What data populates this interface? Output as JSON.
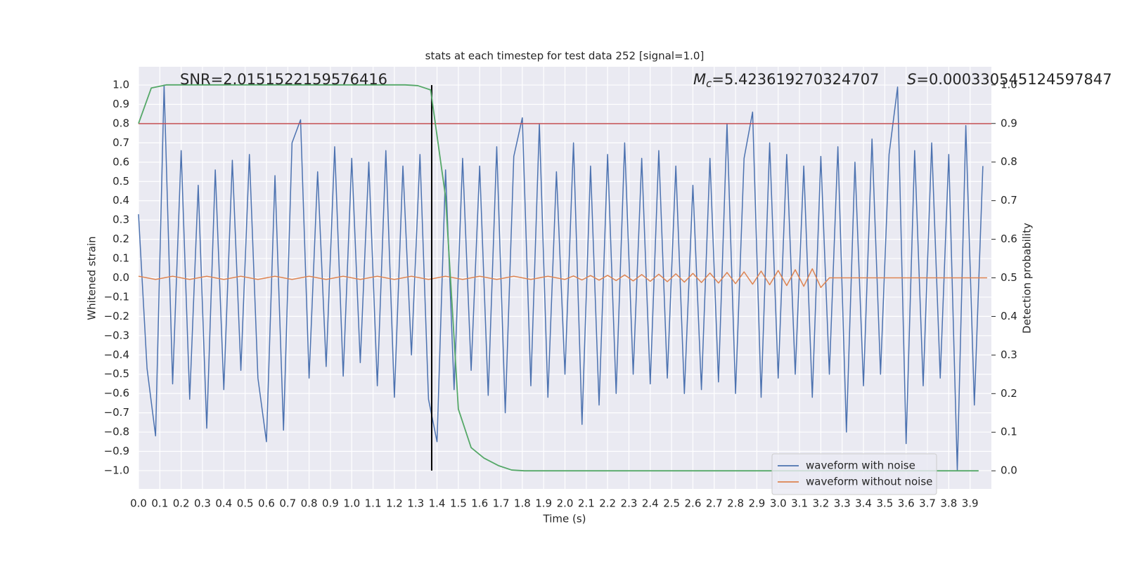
{
  "chart_data": {
    "type": "line",
    "title": "stats at each timestep for test data 252 [signal=1.0]",
    "x_label": "Time (s)",
    "y_label": "Whitened strain",
    "y2_label": "Detection probability",
    "xlim": [
      0,
      4.0
    ],
    "ylim": [
      -1.095,
      1.095
    ],
    "y2lim": [
      -0.047,
      1.047
    ],
    "grid": true,
    "legend": "lower right",
    "background": "#eaeaf2",
    "xticks": [
      {
        "value": 0,
        "label": "0.0"
      },
      0.1,
      0.2,
      0.3,
      0.4,
      0.5,
      0.6,
      0.7,
      0.8,
      0.9,
      {
        "value": 1,
        "label": "1.0"
      },
      1.1,
      1.2,
      1.3,
      1.4,
      1.5,
      1.6,
      1.7,
      1.8,
      1.9,
      {
        "value": 2,
        "label": "2.0"
      },
      2.1,
      2.2,
      2.3,
      2.4,
      2.5,
      2.6,
      2.7,
      2.8,
      2.9,
      {
        "value": 3,
        "label": "3.0"
      },
      3.1,
      3.2,
      3.3,
      3.4,
      3.5,
      3.6,
      3.7,
      3.8,
      3.9
    ],
    "yticks": [
      {
        "value": -1,
        "label": "−1.0"
      },
      {
        "value": -0.9,
        "label": "−0.9"
      },
      {
        "value": -0.8,
        "label": "−0.8"
      },
      {
        "value": -0.7,
        "label": "−0.7"
      },
      {
        "value": -0.6,
        "label": "−0.6"
      },
      {
        "value": -0.5,
        "label": "−0.5"
      },
      {
        "value": -0.4,
        "label": "−0.4"
      },
      {
        "value": -0.3,
        "label": "−0.3"
      },
      {
        "value": -0.2,
        "label": "−0.2"
      },
      {
        "value": -0.1,
        "label": "−0.1"
      },
      {
        "value": 0,
        "label": "0.0"
      },
      0.1,
      0.2,
      0.3,
      0.4,
      0.5,
      0.6,
      0.7,
      0.8,
      0.9,
      {
        "value": 1,
        "label": "1.0"
      }
    ],
    "y2ticks": [
      {
        "value": 0,
        "label": "0.0"
      },
      0.1,
      0.2,
      0.3,
      0.4,
      0.5,
      0.6,
      0.7,
      0.8,
      0.9,
      {
        "value": 1,
        "label": "1.0"
      }
    ],
    "annotations": [
      {
        "text": "SNR=2.0151522159576416"
      },
      {
        "symbol": "M",
        "subscript": "c",
        "text": "=5.423619270324707"
      },
      {
        "symbol": "S",
        "text": "=0.000330545124597847"
      }
    ],
    "hlines": [
      {
        "y": 0.8,
        "color": "#c44e52"
      }
    ],
    "vlines": [
      {
        "x": 1.375,
        "ymin": -1,
        "ymax": 1,
        "color": "#000000"
      }
    ],
    "series": [
      {
        "name": "waveform with noise",
        "color": "#4c72b0",
        "x": [
          0,
          0.04,
          0.08,
          0.12,
          0.16,
          0.2,
          0.24,
          0.28,
          0.32,
          0.36,
          0.4,
          0.44,
          0.48,
          0.52,
          0.56,
          0.6,
          0.64,
          0.68,
          0.72,
          0.76,
          0.8,
          0.84,
          0.88,
          0.92,
          0.96,
          1.0,
          1.04,
          1.08,
          1.12,
          1.16,
          1.2,
          1.24,
          1.28,
          1.32,
          1.36,
          1.4,
          1.44,
          1.48,
          1.52,
          1.56,
          1.6,
          1.64,
          1.68,
          1.72,
          1.76,
          1.8,
          1.84,
          1.88,
          1.92,
          1.96,
          2.0,
          2.04,
          2.08,
          2.12,
          2.16,
          2.2,
          2.24,
          2.28,
          2.32,
          2.36,
          2.4,
          2.44,
          2.48,
          2.52,
          2.56,
          2.6,
          2.64,
          2.68,
          2.72,
          2.76,
          2.8,
          2.84,
          2.88,
          2.92,
          2.96,
          3.0,
          3.04,
          3.08,
          3.12,
          3.16,
          3.2,
          3.24,
          3.28,
          3.32,
          3.36,
          3.4,
          3.44,
          3.48,
          3.52,
          3.56,
          3.6,
          3.64,
          3.68,
          3.72,
          3.76,
          3.8,
          3.84,
          3.88,
          3.92,
          3.96
        ],
        "values": [
          0.33,
          -0.47,
          -0.82,
          1.0,
          -0.55,
          0.66,
          -0.63,
          0.48,
          -0.78,
          0.56,
          -0.58,
          0.61,
          -0.48,
          0.64,
          -0.52,
          -0.85,
          0.53,
          -0.79,
          0.7,
          0.82,
          -0.52,
          0.55,
          -0.46,
          0.68,
          -0.51,
          0.62,
          -0.44,
          0.6,
          -0.56,
          0.66,
          -0.62,
          0.58,
          -0.4,
          0.64,
          -0.63,
          -0.85,
          0.56,
          -0.58,
          0.62,
          -0.48,
          0.58,
          -0.61,
          0.68,
          -0.7,
          0.63,
          0.83,
          -0.56,
          0.8,
          -0.62,
          0.55,
          -0.5,
          0.7,
          -0.76,
          0.58,
          -0.66,
          0.64,
          -0.6,
          0.7,
          -0.5,
          0.62,
          -0.55,
          0.66,
          -0.52,
          0.58,
          -0.6,
          0.48,
          -0.58,
          0.62,
          -0.54,
          0.8,
          -0.6,
          0.62,
          0.86,
          -0.62,
          0.7,
          -0.52,
          0.64,
          -0.5,
          0.58,
          -0.62,
          0.63,
          -0.5,
          0.68,
          -0.8,
          0.6,
          -0.56,
          0.72,
          -0.5,
          0.64,
          0.99,
          -0.86,
          0.66,
          -0.56,
          0.7,
          -0.52,
          0.64,
          -1.0,
          0.79,
          -0.66,
          0.58
        ]
      },
      {
        "name": "waveform without noise",
        "color": "#dd8452",
        "x": [
          0,
          0.08,
          0.16,
          0.24,
          0.32,
          0.4,
          0.48,
          0.56,
          0.64,
          0.72,
          0.8,
          0.88,
          0.96,
          1.04,
          1.12,
          1.2,
          1.28,
          1.36,
          1.44,
          1.52,
          1.6,
          1.68,
          1.76,
          1.84,
          1.92,
          2.0,
          2.04,
          2.08,
          2.12,
          2.16,
          2.2,
          2.24,
          2.28,
          2.32,
          2.36,
          2.4,
          2.44,
          2.48,
          2.52,
          2.56,
          2.6,
          2.64,
          2.68,
          2.72,
          2.76,
          2.8,
          2.84,
          2.88,
          2.92,
          2.96,
          3.0,
          3.04,
          3.08,
          3.12,
          3.16,
          3.2,
          3.24,
          3.98
        ],
        "values": [
          0.008,
          -0.008,
          0.008,
          -0.008,
          0.008,
          -0.008,
          0.008,
          -0.008,
          0.008,
          -0.008,
          0.008,
          -0.008,
          0.008,
          -0.008,
          0.008,
          -0.008,
          0.008,
          -0.008,
          0.008,
          -0.008,
          0.008,
          -0.008,
          0.008,
          -0.008,
          0.008,
          -0.008,
          0.01,
          -0.011,
          0.012,
          -0.012,
          0.013,
          -0.014,
          0.015,
          -0.016,
          0.017,
          -0.018,
          0.019,
          -0.02,
          0.021,
          -0.022,
          0.023,
          -0.024,
          0.025,
          -0.027,
          0.028,
          -0.03,
          0.031,
          -0.033,
          0.035,
          -0.036,
          0.038,
          -0.04,
          0.042,
          -0.044,
          0.047,
          -0.05,
          0,
          0
        ]
      },
      {
        "color": "#55a868",
        "axis": "y2",
        "x": [
          0,
          0.06,
          0.13,
          1.25,
          1.31,
          1.37,
          1.44,
          1.5,
          1.56,
          1.62,
          1.69,
          1.75,
          1.81,
          3.94
        ],
        "values": [
          0.9,
          0.992,
          1.0,
          1.0,
          0.998,
          0.987,
          0.71,
          0.16,
          0.06,
          0.033,
          0.013,
          0.002,
          0,
          0
        ]
      }
    ]
  }
}
